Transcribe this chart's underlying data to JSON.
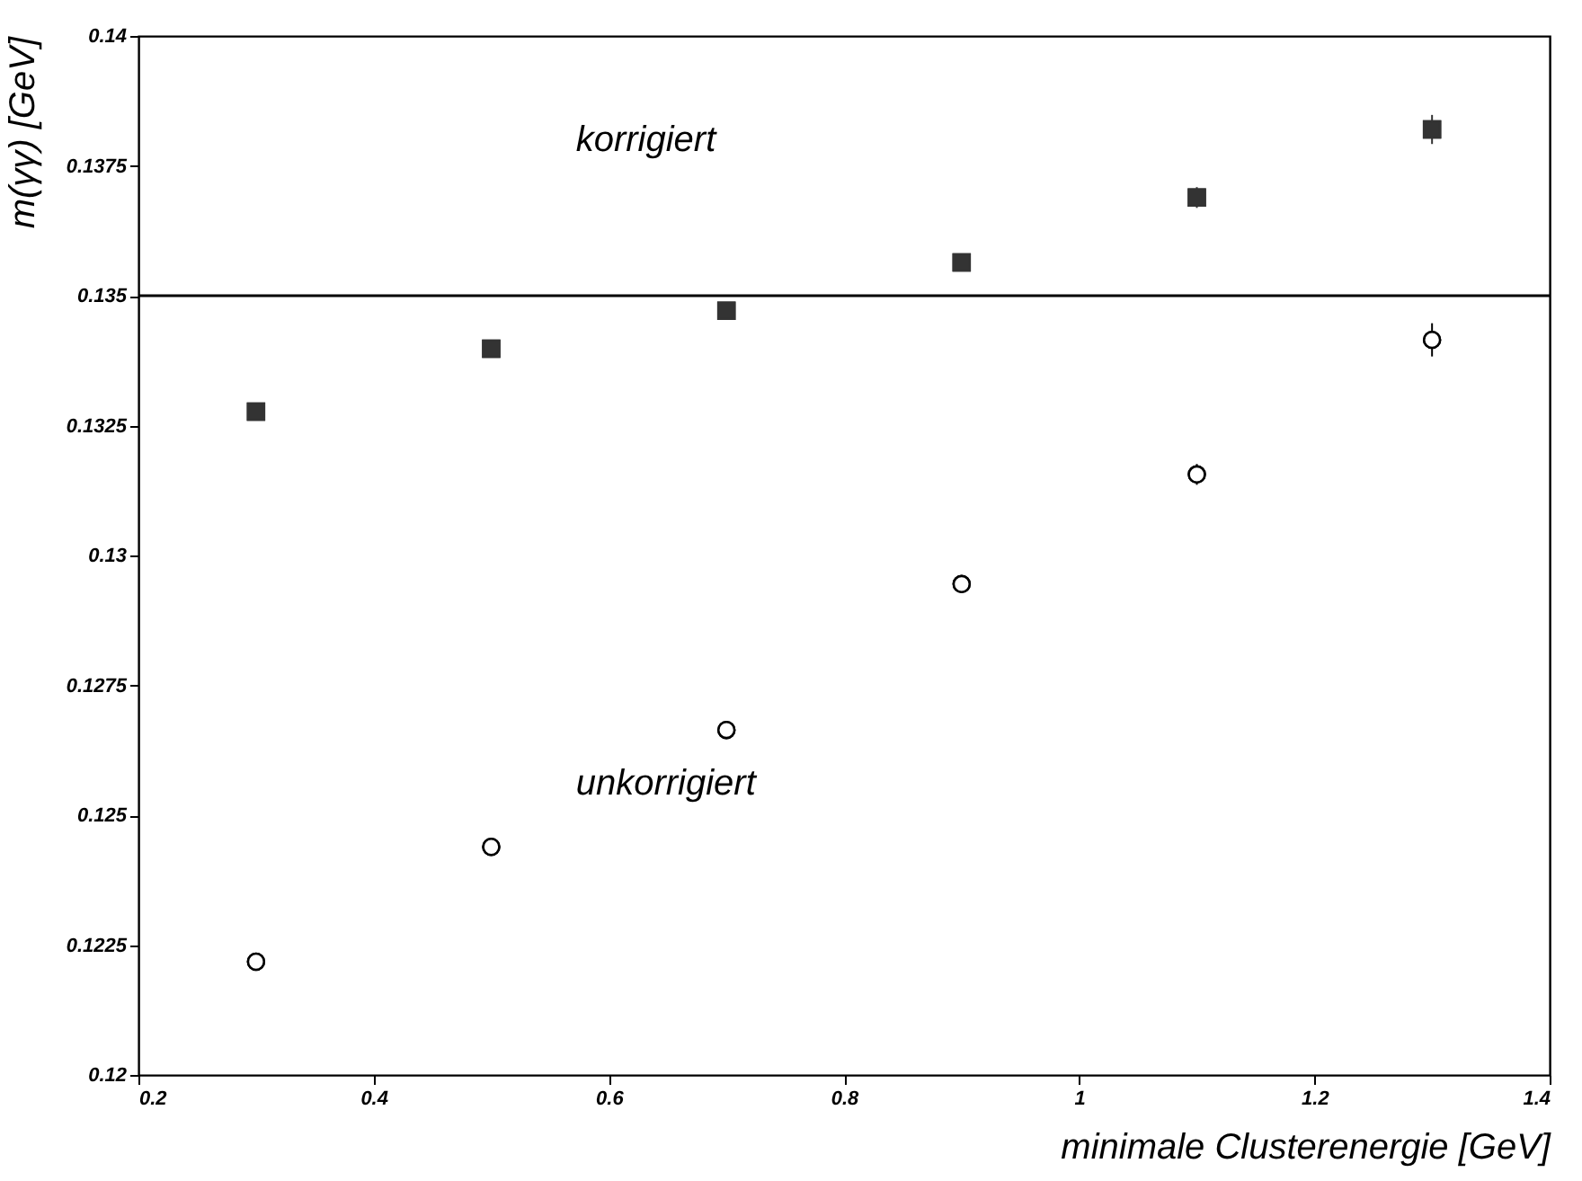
{
  "chart_data": {
    "type": "scatter",
    "xlabel": "minimale Clusterenergie  [GeV]",
    "ylabel": "m(γγ)  [GeV]",
    "x": [
      0.3,
      0.5,
      0.7,
      0.9,
      1.1,
      1.3
    ],
    "series": [
      {
        "color": "#333333",
        "marker": "square",
        "values": [
          0.13277,
          0.13398,
          0.13471,
          0.13564,
          0.13689,
          0.1382
        ],
        "errors": [
          0.00012,
          0.0001,
          0.0001,
          0.00012,
          0.0002,
          0.00028
        ]
      },
      {
        "color": "#000000",
        "marker": "circle",
        "values": [
          0.12218,
          0.12439,
          0.12664,
          0.12945,
          0.13156,
          0.13415
        ],
        "errors": [
          0.0001,
          0.0001,
          0.00012,
          0.00015,
          0.0002,
          0.00032
        ]
      }
    ],
    "xlim": [
      0.2,
      1.4
    ],
    "xticks": [
      0.2,
      0.4,
      0.6,
      0.8,
      1,
      1.2,
      1.4
    ],
    "ylim": [
      0.12,
      0.14
    ],
    "yticks": [
      0.12,
      0.1225,
      0.125,
      0.1275,
      0.13,
      0.1325,
      0.135,
      0.1375,
      0.14
    ],
    "ref_lines": [
      {
        "axis": "y",
        "value": 0.135
      }
    ],
    "annotations": [
      "korrigiert",
      "unkorrigiert"
    ],
    "grid": false
  }
}
